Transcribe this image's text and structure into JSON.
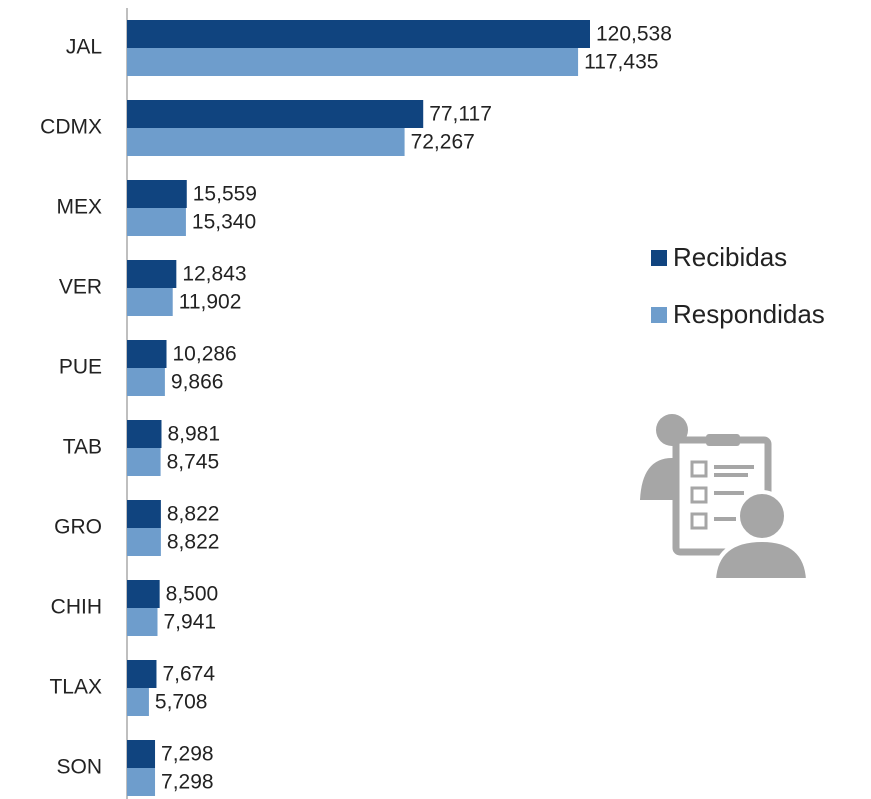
{
  "chart_data": {
    "type": "hbar",
    "categories": [
      "JAL",
      "CDMX",
      "MEX",
      "VER",
      "PUE",
      "TAB",
      "GRO",
      "CHIH",
      "TLAX",
      "SON"
    ],
    "series": [
      {
        "name": "Recibidas",
        "color": "#10447f",
        "values": [
          120538,
          77117,
          15559,
          12843,
          10286,
          8981,
          8822,
          8500,
          7674,
          7298
        ],
        "value_labels": [
          "120,538",
          "77,117",
          "15,559",
          "12,843",
          "10,286",
          "8,981",
          "8,822",
          "8,500",
          "7,674",
          "7,298"
        ]
      },
      {
        "name": "Respondidas",
        "color": "#6e9dcc",
        "values": [
          117435,
          72267,
          15340,
          11902,
          9866,
          8745,
          8822,
          7941,
          5708,
          7298
        ],
        "value_labels": [
          "117,435",
          "72,267",
          "15,340",
          "11,902",
          "9,866",
          "8,745",
          "8,822",
          "7,941",
          "5,708",
          "7,298"
        ]
      }
    ],
    "legend": "right"
  }
}
